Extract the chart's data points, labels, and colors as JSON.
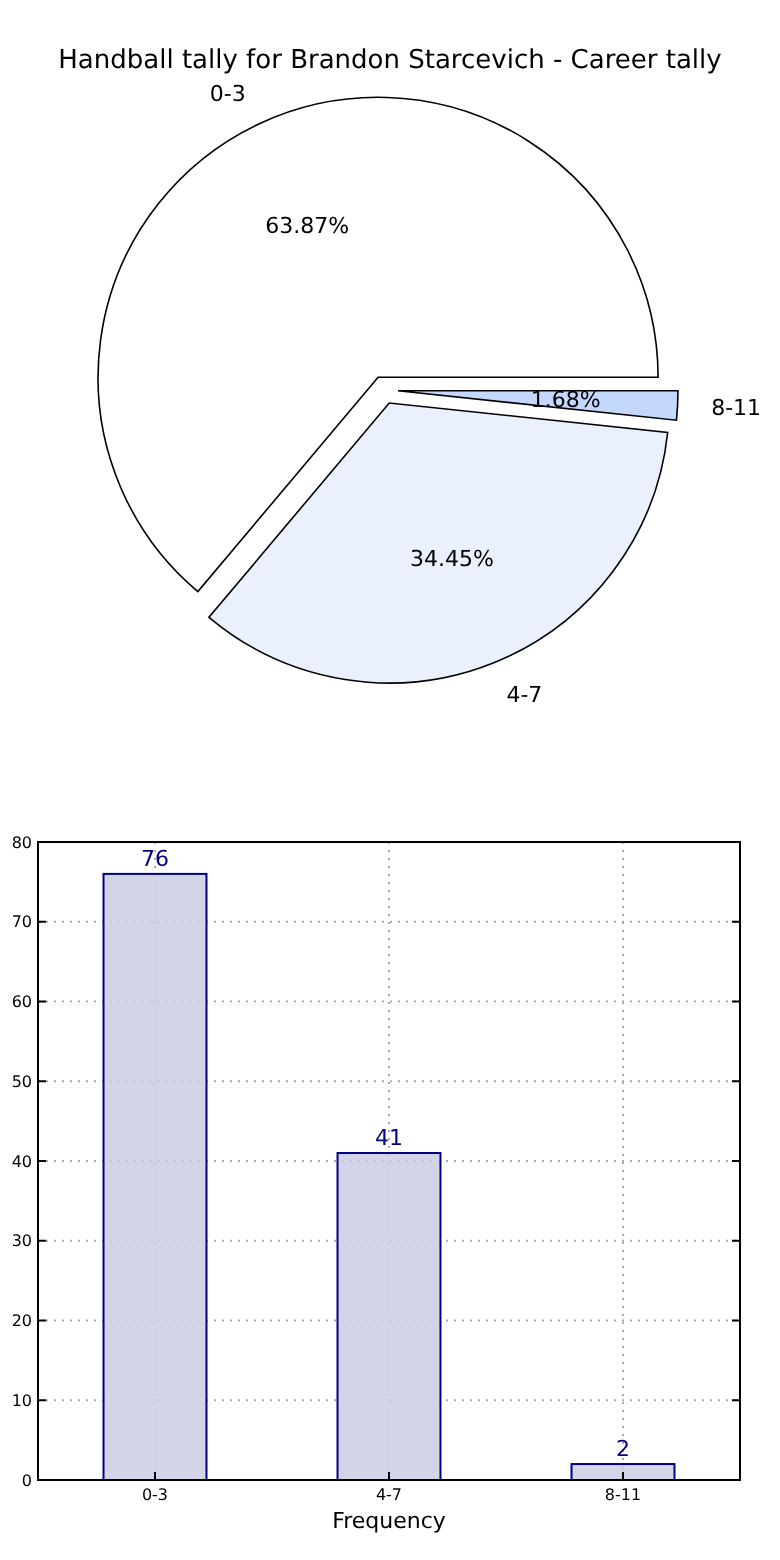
{
  "chart_data": [
    {
      "type": "pie",
      "title": "Handball tally for Brandon Starcevich - Career tally",
      "categories": [
        "0-3",
        "4-7",
        "8-11"
      ],
      "values": [
        63.87,
        34.45,
        1.68
      ],
      "colors": [
        "#ffffff",
        "#eaf0fe",
        "#c4d8fe"
      ],
      "value_labels": [
        "63.87%",
        "34.45%",
        "1.68%"
      ]
    },
    {
      "type": "bar",
      "xlabel": "Frequency",
      "categories": [
        "0-3",
        "4-7",
        "8-11"
      ],
      "values": [
        76,
        41,
        2
      ],
      "color": "#ccccE4",
      "ylim": [
        0,
        80
      ],
      "yticks": [
        0,
        10,
        20,
        30,
        40,
        50,
        60,
        70,
        80
      ],
      "grid": true,
      "data_labels": true
    }
  ]
}
